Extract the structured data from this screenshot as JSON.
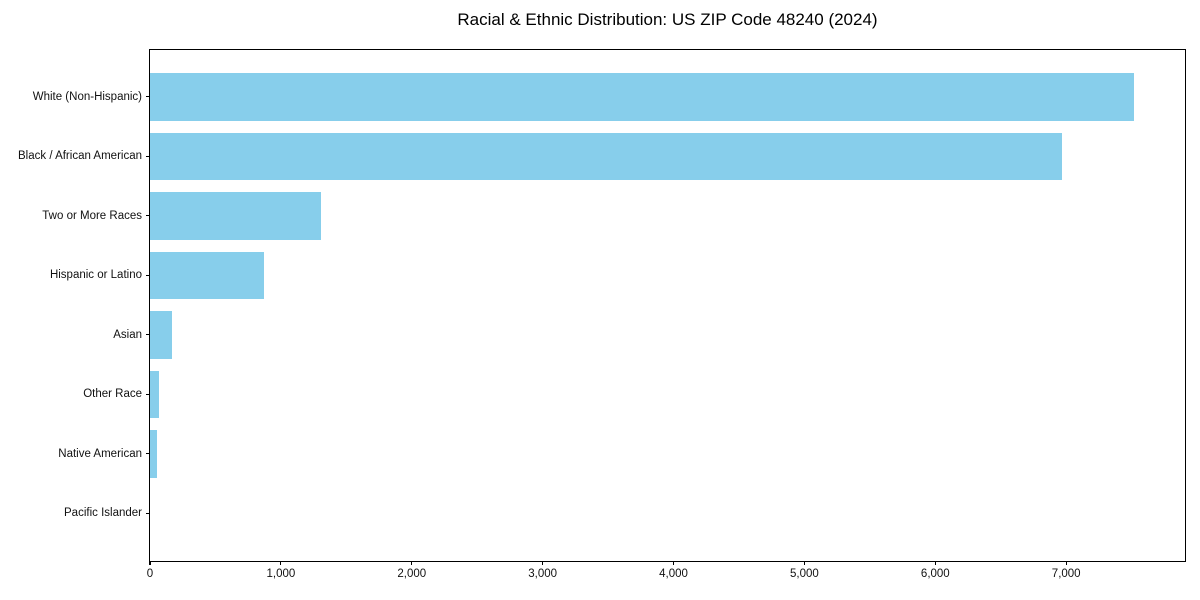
{
  "chart_data": {
    "type": "bar",
    "orientation": "horizontal",
    "title": "Racial & Ethnic Distribution: US ZIP Code 48240 (2024)",
    "categories": [
      "White (Non-Hispanic)",
      "Black / African American",
      "Two or More Races",
      "Hispanic or Latino",
      "Asian",
      "Other Race",
      "Native American",
      "Pacific Islander"
    ],
    "values": [
      7520,
      6970,
      1310,
      870,
      170,
      70,
      50,
      0
    ],
    "xlabel": "",
    "ylabel": "",
    "xlim": [
      0,
      7900
    ],
    "xticks": [
      0,
      1000,
      2000,
      3000,
      4000,
      5000,
      6000,
      7000
    ],
    "xtick_labels": [
      "0",
      "1,000",
      "2,000",
      "3,000",
      "4,000",
      "5,000",
      "6,000",
      "7,000"
    ],
    "grid": false,
    "legend": null,
    "bar_color": "#87CEEB",
    "spine_color": "#000000",
    "background_color": "#ffffff"
  }
}
